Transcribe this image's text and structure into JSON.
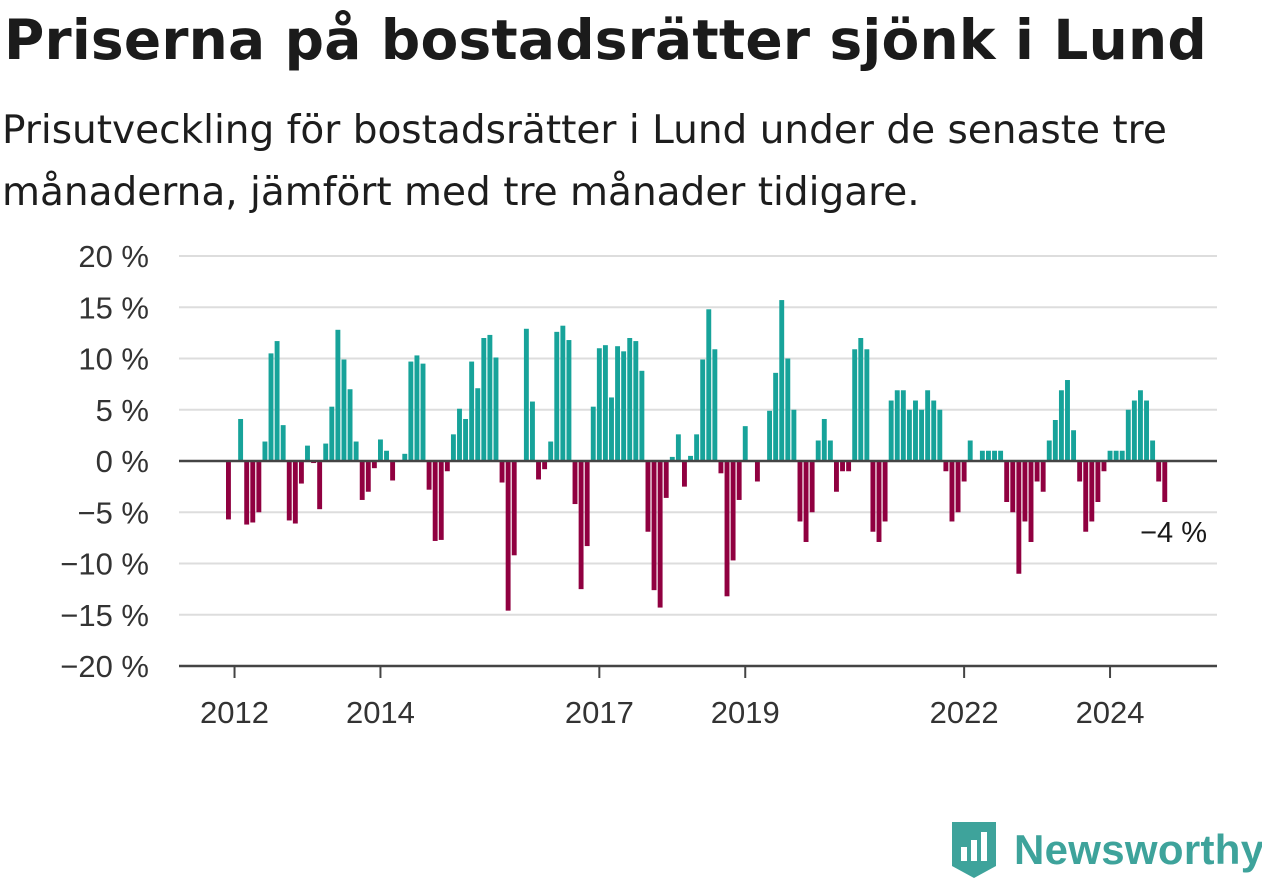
{
  "title": "Priserna på bostadsrätter sjönk i Lund",
  "subtitle": "Prisutveckling för bostadsrätter i Lund under de senaste tre månaderna, jämfört med tre månader tidigare.",
  "brand": {
    "name": "Newsworthy",
    "icon": "newsworthy-logo-icon"
  },
  "colors": {
    "positive": "#17a39a",
    "negative": "#900040",
    "grid": "#dddddd",
    "axis": "#444444"
  },
  "chart_data": {
    "type": "bar",
    "x_start": "2011-12",
    "x_step": "month",
    "y_ticks": [
      20,
      15,
      10,
      5,
      0,
      -5,
      -10,
      -15,
      -20
    ],
    "y_tick_labels": [
      "20 %",
      "15 %",
      "10 %",
      "5 %",
      "0 %",
      "−5 %",
      "−10 %",
      "−15 %",
      "−20 %"
    ],
    "ylim": [
      -20,
      20
    ],
    "x_ticks": [
      "2012",
      "2014",
      "2017",
      "2019",
      "2022",
      "2024"
    ],
    "annotation": "−4 %",
    "grid": true,
    "values": [
      -5.7,
      0,
      4.1,
      -6.2,
      -6.0,
      -5.0,
      1.9,
      10.5,
      11.7,
      3.5,
      -5.8,
      -6.1,
      -2.2,
      1.5,
      -0.2,
      -4.7,
      1.7,
      5.3,
      12.8,
      9.9,
      7.0,
      1.9,
      -3.8,
      -3.0,
      -0.7,
      2.1,
      1.0,
      -1.9,
      0,
      0.7,
      9.7,
      10.3,
      9.5,
      -2.8,
      -7.8,
      -7.7,
      -1.0,
      2.6,
      5.1,
      4.1,
      9.7,
      7.1,
      12.0,
      12.3,
      10.1,
      -2.1,
      -14.6,
      -9.2,
      0,
      12.9,
      5.8,
      -1.8,
      -0.8,
      1.9,
      12.6,
      13.2,
      11.8,
      -4.2,
      -12.5,
      -8.3,
      5.3,
      11.0,
      11.3,
      6.2,
      11.2,
      10.7,
      12.0,
      11.7,
      8.8,
      -6.9,
      -12.6,
      -14.3,
      -3.6,
      0.4,
      2.6,
      -2.5,
      0.5,
      2.6,
      9.9,
      14.8,
      10.9,
      -1.2,
      -13.2,
      -9.7,
      -3.8,
      3.4,
      0,
      -2.0,
      0,
      4.9,
      8.6,
      15.7,
      10.0,
      5.0,
      -5.9,
      -7.9,
      -5.0,
      2.0,
      4.1,
      2.0,
      -3.0,
      -1.0,
      -1.0,
      10.9,
      12.0,
      10.9,
      -6.9,
      -7.9,
      -5.9,
      5.9,
      6.9,
      6.9,
      5.0,
      5.9,
      5.0,
      6.9,
      5.9,
      5.0,
      -1.0,
      -5.9,
      -5.0,
      -2.0,
      2.0,
      0,
      1.0,
      1.0,
      1.0,
      1.0,
      -4.0,
      -5.0,
      -11.0,
      -5.9,
      -7.9,
      -2.0,
      -3.0,
      2.0,
      4.0,
      6.9,
      7.9,
      3.0,
      -2.0,
      -6.9,
      -5.9,
      -4.0,
      -1.0,
      1.0,
      1.0,
      1.0,
      5.0,
      5.9,
      6.9,
      5.9,
      2.0,
      -2.0,
      -4.0
    ]
  }
}
